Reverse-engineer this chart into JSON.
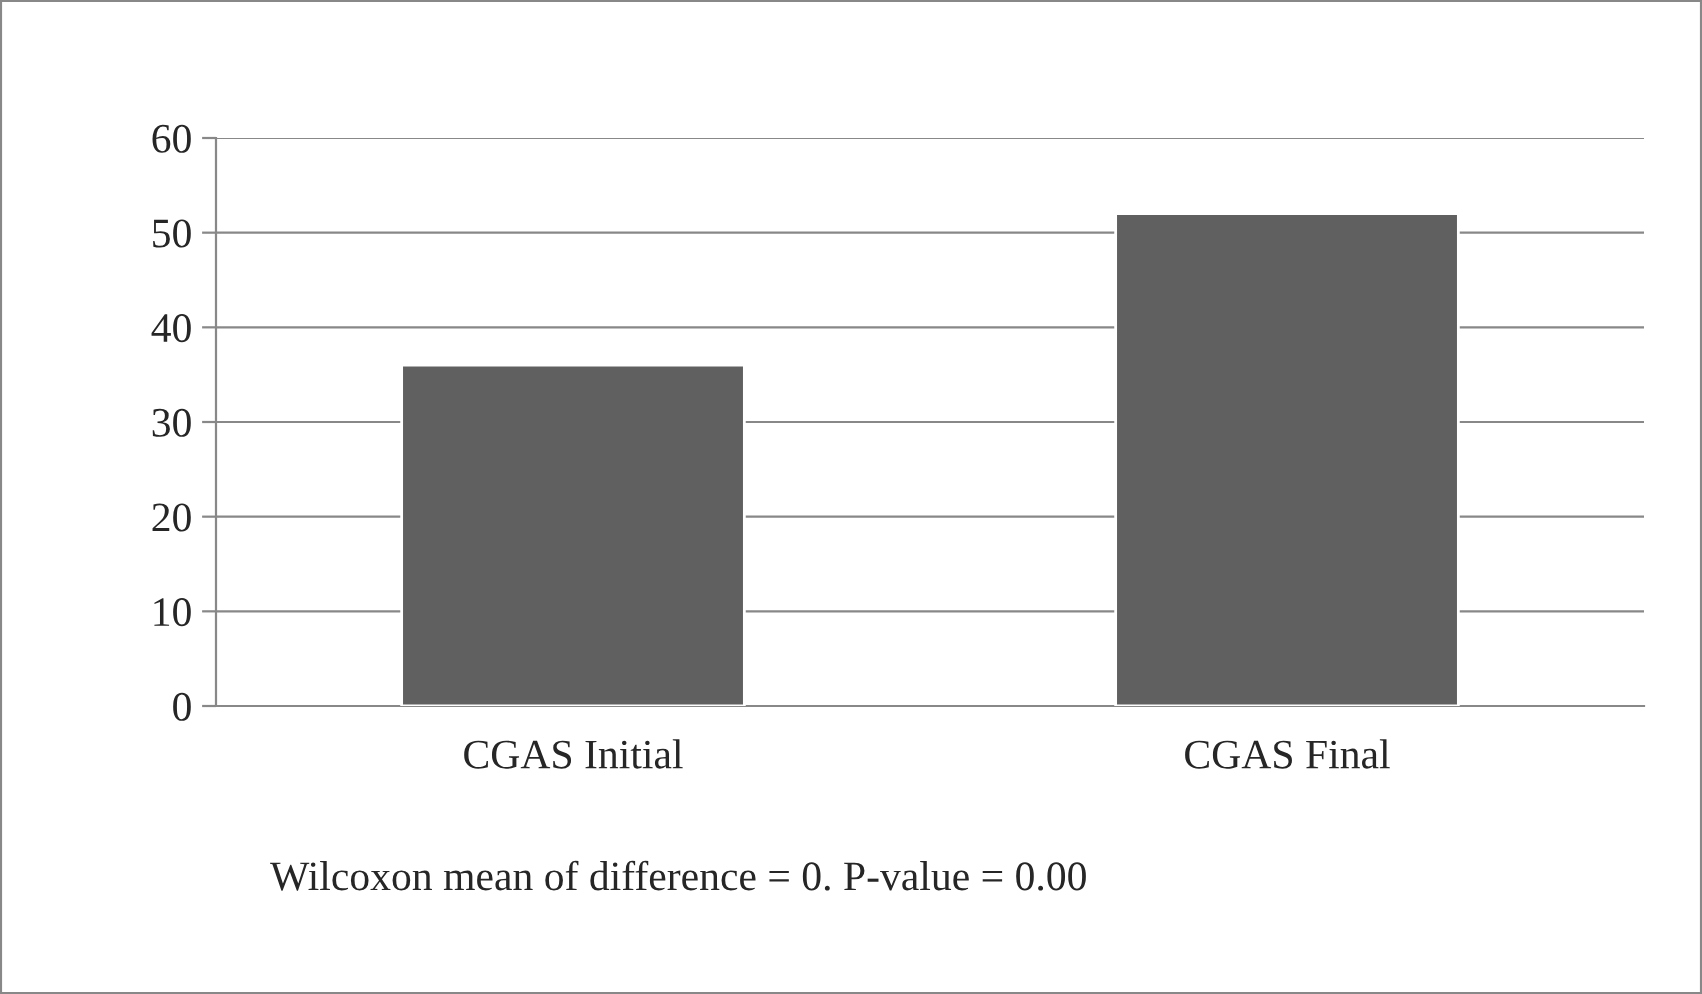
{
  "chart_data": {
    "type": "bar",
    "categories": [
      "CGAS Initial",
      "CGAS Final"
    ],
    "values": [
      36,
      52
    ],
    "color": "#606060",
    "ylim": [
      0,
      60
    ],
    "yticks": [
      0,
      10,
      20,
      30,
      40,
      50,
      60
    ],
    "grid": "y",
    "legend": false,
    "annotations": [
      "Wilcoxon mean of difference = 0. P-value = 0.00"
    ]
  }
}
